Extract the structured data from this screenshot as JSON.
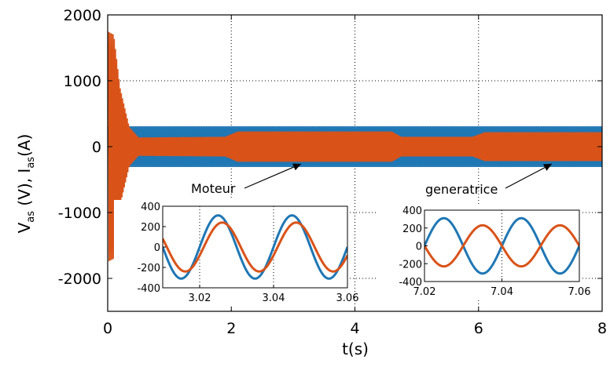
{
  "chart_data": {
    "type": "line",
    "xlabel": "t(s)",
    "ylabel": "V_as (V), I_as(A)",
    "xlim": [
      0,
      8
    ],
    "ylim": [
      -2500,
      2000
    ],
    "xticks": [
      0,
      2,
      4,
      6,
      8
    ],
    "yticks": [
      -2000,
      -1000,
      0,
      1000,
      2000
    ],
    "grid": true,
    "colors": {
      "voltage": "#1f77b4",
      "current": "#d95319"
    },
    "series": [
      {
        "key": "voltage",
        "amplitude_envelope": [
          [
            0,
            310
          ],
          [
            8,
            310
          ]
        ]
      },
      {
        "key": "current",
        "amplitude_envelope": [
          [
            0,
            1750
          ],
          [
            0.1,
            1700
          ],
          [
            0.2,
            900
          ],
          [
            0.35,
            300
          ],
          [
            0.5,
            140
          ],
          [
            1.9,
            150
          ],
          [
            2.1,
            230
          ],
          [
            4.6,
            230
          ],
          [
            4.75,
            150
          ],
          [
            5.9,
            150
          ],
          [
            6.1,
            220
          ],
          [
            8,
            220
          ]
        ]
      }
    ],
    "annotations": [
      "Moteur",
      "generatrice"
    ],
    "insets": [
      {
        "xlim": [
          3.01,
          3.06
        ],
        "ylim": [
          -400,
          400
        ],
        "xticks": [
          3.02,
          3.04,
          3.06
        ],
        "xtick_labels": [
          "3.02",
          "3.04",
          "3.06"
        ],
        "yticks": [
          400,
          200,
          0,
          -200,
          -400
        ],
        "ytick_labels": [
          "400",
          "200",
          "0",
          "-200",
          "-400"
        ],
        "frequency_hz": 50,
        "voltage": {
          "amplitude": 310,
          "phase_deg": 0
        },
        "current": {
          "amplitude": 240,
          "phase_deg": -20
        }
      },
      {
        "xlim": [
          7.02,
          7.06
        ],
        "ylim": [
          -400,
          400
        ],
        "xticks": [
          7.02,
          7.04,
          7.06
        ],
        "xtick_labels": [
          "7.02",
          "7.04",
          "7.06"
        ],
        "yticks": [
          400,
          200,
          0,
          -200,
          -400
        ],
        "ytick_labels": [
          "400",
          "200",
          "0",
          "-200",
          "-400"
        ],
        "frequency_hz": 50,
        "voltage": {
          "amplitude": 310,
          "phase_deg": 0
        },
        "current": {
          "amplitude": 230,
          "phase_deg": 180
        }
      }
    ]
  }
}
